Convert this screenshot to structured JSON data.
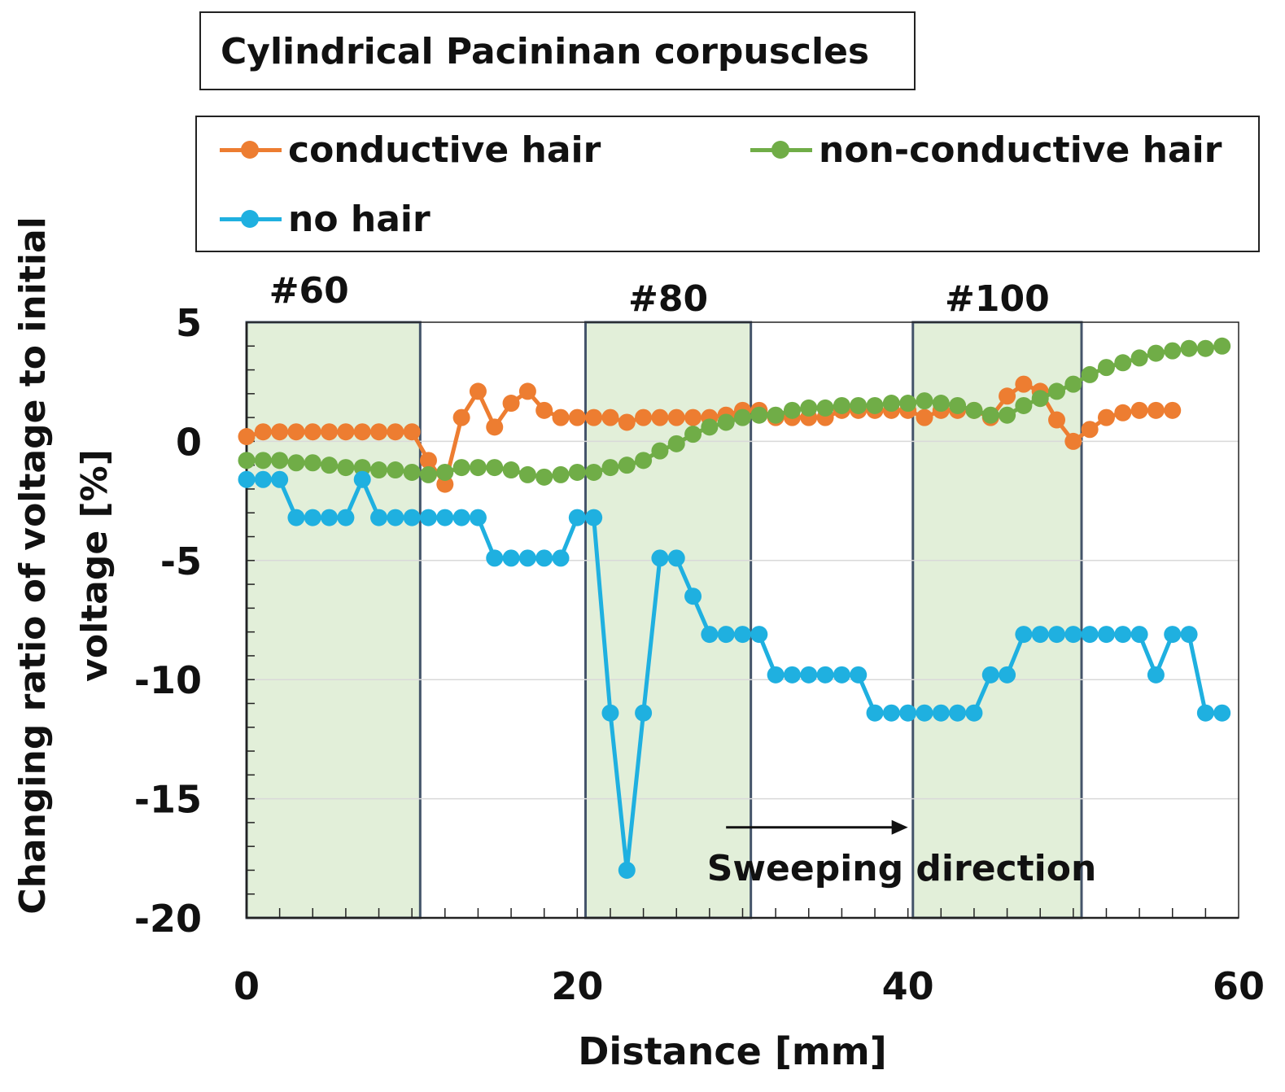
{
  "chart_data": {
    "type": "line",
    "title": "Cylindrical Pacininan corpuscles",
    "xlabel": "Distance   [mm]",
    "ylabel": "Changing ratio of voltage to initial voltage   [%]",
    "xlim": [
      0,
      60
    ],
    "ylim": [
      -20,
      5
    ],
    "x_ticks": [
      0,
      20,
      40,
      60
    ],
    "y_ticks": [
      5,
      0,
      -5,
      -10,
      -15,
      -20
    ],
    "grid": true,
    "legend_position": "top",
    "regions": [
      {
        "label": "#60",
        "x_start": 0,
        "x_end": 10.5
      },
      {
        "label": "#80",
        "x_start": 20.5,
        "x_end": 30.5
      },
      {
        "label": "#100",
        "x_start": 40.3,
        "x_end": 50.5
      }
    ],
    "annotation": {
      "text": "Sweeping direction",
      "arrow_x_start": 29,
      "arrow_x_end": 40,
      "arrow_y": -16.2
    },
    "series": [
      {
        "name": "conductive hair",
        "color": "#ED7D31",
        "x": [
          0,
          1,
          2,
          3,
          4,
          5,
          6,
          7,
          8,
          9,
          10,
          11,
          12,
          13,
          14,
          15,
          16,
          17,
          18,
          19,
          20,
          21,
          22,
          23,
          24,
          25,
          26,
          27,
          28,
          29,
          30,
          31,
          32,
          33,
          34,
          35,
          36,
          37,
          38,
          39,
          40,
          41,
          42,
          43,
          44,
          45,
          46,
          47,
          48,
          49,
          50,
          51,
          52,
          53,
          54,
          55,
          56
        ],
        "values": [
          0.2,
          0.4,
          0.4,
          0.4,
          0.4,
          0.4,
          0.4,
          0.4,
          0.4,
          0.4,
          0.4,
          -0.8,
          -1.8,
          1.0,
          2.1,
          0.6,
          1.6,
          2.1,
          1.3,
          1.0,
          1.0,
          1.0,
          1.0,
          0.8,
          1.0,
          1.0,
          1.0,
          1.0,
          1.0,
          1.1,
          1.3,
          1.3,
          1.0,
          1.0,
          1.0,
          1.0,
          1.3,
          1.3,
          1.3,
          1.3,
          1.3,
          1.0,
          1.3,
          1.3,
          1.3,
          1.0,
          1.9,
          2.4,
          2.1,
          0.9,
          0.0,
          0.5,
          1.0,
          1.2,
          1.3,
          1.3,
          1.3
        ]
      },
      {
        "name": "non-conductive hair",
        "color": "#70AD47",
        "x": [
          0,
          1,
          2,
          3,
          4,
          5,
          6,
          7,
          8,
          9,
          10,
          11,
          12,
          13,
          14,
          15,
          16,
          17,
          18,
          19,
          20,
          21,
          22,
          23,
          24,
          25,
          26,
          27,
          28,
          29,
          30,
          31,
          32,
          33,
          34,
          35,
          36,
          37,
          38,
          39,
          40,
          41,
          42,
          43,
          44,
          45,
          46,
          47,
          48,
          49,
          50,
          51,
          52,
          53,
          54,
          55,
          56,
          57,
          58,
          59
        ],
        "values": [
          -0.8,
          -0.8,
          -0.8,
          -0.9,
          -0.9,
          -1.0,
          -1.1,
          -1.1,
          -1.2,
          -1.2,
          -1.3,
          -1.4,
          -1.3,
          -1.1,
          -1.1,
          -1.1,
          -1.2,
          -1.4,
          -1.5,
          -1.4,
          -1.3,
          -1.3,
          -1.1,
          -1.0,
          -0.8,
          -0.4,
          -0.1,
          0.3,
          0.6,
          0.8,
          1.0,
          1.1,
          1.1,
          1.3,
          1.4,
          1.4,
          1.5,
          1.5,
          1.5,
          1.6,
          1.6,
          1.7,
          1.6,
          1.5,
          1.3,
          1.1,
          1.1,
          1.5,
          1.8,
          2.1,
          2.4,
          2.8,
          3.1,
          3.3,
          3.5,
          3.7,
          3.8,
          3.9,
          3.9,
          4.0
        ]
      },
      {
        "name": "no hair",
        "color": "#1FB0E0",
        "x": [
          0,
          1,
          2,
          3,
          4,
          5,
          6,
          7,
          8,
          9,
          10,
          11,
          12,
          13,
          14,
          15,
          16,
          17,
          18,
          19,
          20,
          21,
          22,
          23,
          24,
          25,
          26,
          27,
          28,
          29,
          30,
          31,
          32,
          33,
          34,
          35,
          36,
          37,
          38,
          39,
          40,
          41,
          42,
          43,
          44,
          45,
          46,
          47,
          48,
          49,
          50,
          51,
          52,
          53,
          54,
          55,
          56,
          57,
          58,
          59
        ],
        "values": [
          -1.6,
          -1.6,
          -1.6,
          -3.2,
          -3.2,
          -3.2,
          -3.2,
          -1.6,
          -3.2,
          -3.2,
          -3.2,
          -3.2,
          -3.2,
          -3.2,
          -3.2,
          -4.9,
          -4.9,
          -4.9,
          -4.9,
          -4.9,
          -3.2,
          -3.2,
          -11.4,
          -18.0,
          -11.4,
          -4.9,
          -4.9,
          -6.5,
          -8.1,
          -8.1,
          -8.1,
          -8.1,
          -9.8,
          -9.8,
          -9.8,
          -9.8,
          -9.8,
          -9.8,
          -11.4,
          -11.4,
          -11.4,
          -11.4,
          -11.4,
          -11.4,
          -11.4,
          -9.8,
          -9.8,
          -8.1,
          -8.1,
          -8.1,
          -8.1,
          -8.1,
          -8.1,
          -8.1,
          -8.1,
          -9.8,
          -8.1,
          -8.1,
          -11.4,
          -11.4
        ]
      }
    ]
  }
}
